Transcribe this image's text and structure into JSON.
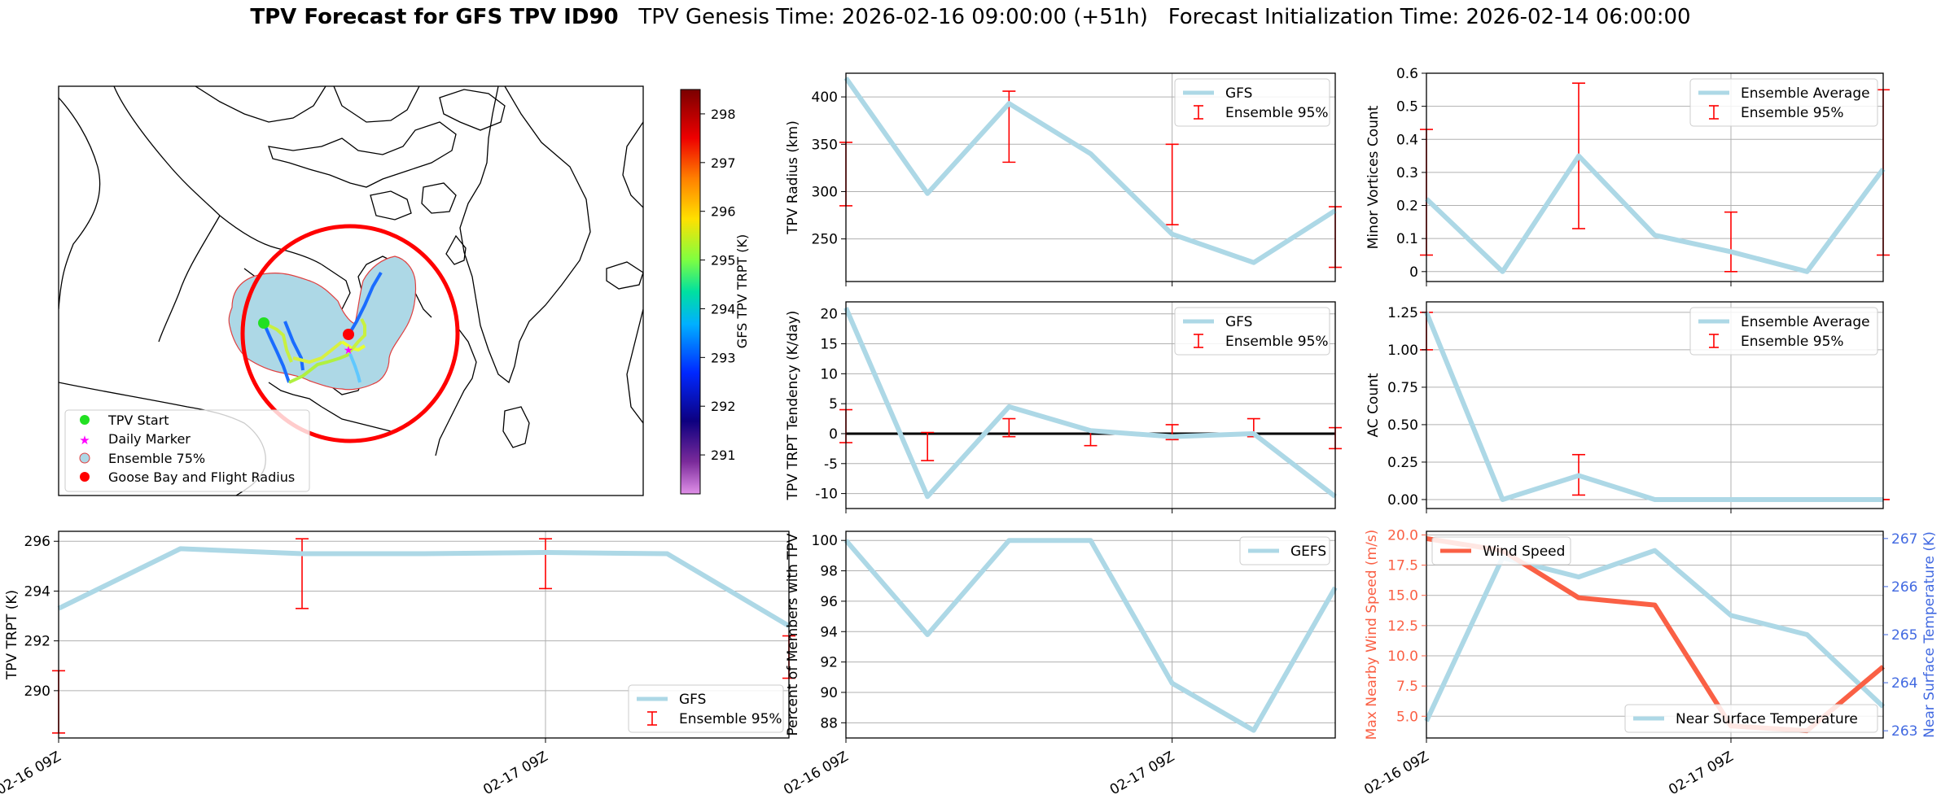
{
  "figure": {
    "title_bold": "TPV Forecast for GFS TPV ID90",
    "title_rest": "   TPV Genesis Time: 2026-02-16 09:00:00 (+51h)   Forecast Initialization Time: 2026-02-14 06:00:00"
  },
  "colors": {
    "line": "#add8e6",
    "errorbar": "#ff0000",
    "wind": "#fa6045",
    "temp_axis": "#4169e1",
    "map_fill": "#add8e6",
    "flight_radius": "#ff0000"
  },
  "map": {
    "colorbar_label": "GFS TPV TRPT (K)",
    "colorbar_ticks": [
      291,
      292,
      293,
      294,
      295,
      296,
      297,
      298
    ],
    "colorbar_range": [
      290.2,
      298.5
    ],
    "legend": [
      "TPV Start",
      "Daily Marker",
      "Ensemble 75%",
      "Goose Bay and Flight Radius"
    ],
    "icons": {
      "start": "green-dot",
      "daily": "magenta-star",
      "ensemble": "lightblue-circle",
      "goose_bay": "red-dot"
    }
  },
  "chart_data": [
    {
      "id": "trpt",
      "type": "line",
      "ylabel": "TPV TRPT (K)",
      "ylim": [
        288.1,
        296.4
      ],
      "yticks": [
        290,
        292,
        294,
        296
      ],
      "xticks": [
        0,
        24
      ],
      "xticklabels": [
        "02-16 09Z",
        "02-17 09Z"
      ],
      "xlim": [
        0,
        36
      ],
      "legend_position": "lower right",
      "series": [
        {
          "name": "GFS",
          "x": [
            0,
            6,
            12,
            18,
            24,
            30,
            36
          ],
          "values": [
            293.3,
            295.7,
            295.5,
            295.5,
            295.55,
            295.5,
            292.6
          ]
        }
      ],
      "errorbars": {
        "name": "Ensemble 95%",
        "x": [
          0,
          12,
          24,
          36
        ],
        "low": [
          288.3,
          293.3,
          294.1,
          290.5
        ],
        "high": [
          290.8,
          296.1,
          296.1,
          292.2
        ]
      }
    },
    {
      "id": "radius",
      "type": "line",
      "ylabel": "TPV Radius (km)",
      "ylim": [
        205,
        425
      ],
      "yticks": [
        250,
        300,
        350,
        400
      ],
      "xticks": [
        0,
        24
      ],
      "xlim": [
        0,
        36
      ],
      "legend_position": "upper right",
      "series": [
        {
          "name": "GFS",
          "x": [
            0,
            6,
            12,
            18,
            24,
            30,
            36
          ],
          "values": [
            420,
            298,
            393,
            340,
            255,
            225,
            280
          ]
        }
      ],
      "errorbars": {
        "name": "Ensemble 95%",
        "x": [
          0,
          12,
          24,
          36
        ],
        "low": [
          285,
          331,
          265,
          220
        ],
        "high": [
          352,
          406,
          350,
          284
        ]
      }
    },
    {
      "id": "tendency",
      "type": "line",
      "ylabel": "TPV TRPT Tendency (K/day)",
      "ylim": [
        -12.5,
        22
      ],
      "yticks": [
        -10,
        -5,
        0,
        5,
        10,
        15,
        20
      ],
      "xticks": [
        0,
        24
      ],
      "xlim": [
        0,
        36
      ],
      "zero_line": true,
      "legend_position": "upper right",
      "series": [
        {
          "name": "GFS",
          "x": [
            0,
            6,
            12,
            18,
            24,
            30,
            36
          ],
          "values": [
            21,
            -10.5,
            4.5,
            0.5,
            -0.5,
            0,
            -10.5
          ]
        }
      ],
      "errorbars": {
        "name": "Ensemble 95%",
        "x": [
          0,
          6,
          12,
          18,
          24,
          30,
          36
        ],
        "low": [
          -1.5,
          -4.5,
          -0.5,
          -2,
          -1,
          -0.5,
          -2.5
        ],
        "high": [
          4,
          0.2,
          2.5,
          0.5,
          1.5,
          2.5,
          1
        ]
      }
    },
    {
      "id": "members",
      "type": "line",
      "ylabel": "Percent of Members with TPV",
      "ylim": [
        87,
        100.6
      ],
      "yticks": [
        88,
        90,
        92,
        94,
        96,
        98,
        100
      ],
      "xticks": [
        0,
        24
      ],
      "xticklabels": [
        "02-16 09Z",
        "02-17 09Z"
      ],
      "xlim": [
        0,
        36
      ],
      "legend_position": "upper right",
      "series": [
        {
          "name": "GEFS",
          "x": [
            0,
            6,
            12,
            18,
            24,
            30,
            36
          ],
          "values": [
            100,
            93.8,
            100,
            100,
            90.6,
            87.5,
            96.9
          ]
        }
      ]
    },
    {
      "id": "minor",
      "type": "line",
      "ylabel": "Minor Vortices Count",
      "ylim": [
        -0.03,
        0.6
      ],
      "yticks": [
        0.0,
        0.1,
        0.2,
        0.3,
        0.4,
        0.5,
        0.6
      ],
      "xticks": [
        0,
        24
      ],
      "xlim": [
        0,
        36
      ],
      "legend_position": "upper right",
      "series": [
        {
          "name": "Ensemble Average",
          "x": [
            0,
            6,
            12,
            18,
            24,
            30,
            36
          ],
          "values": [
            0.22,
            0,
            0.35,
            0.11,
            0.06,
            0,
            0.31
          ]
        }
      ],
      "errorbars": {
        "name": "Ensemble 95%",
        "x": [
          0,
          12,
          24,
          36
        ],
        "low": [
          0.05,
          0.13,
          0,
          0.05
        ],
        "high": [
          0.43,
          0.57,
          0.18,
          0.55
        ]
      }
    },
    {
      "id": "ac",
      "type": "line",
      "ylabel": "AC Count",
      "ylim": [
        -0.06,
        1.32
      ],
      "yticks": [
        0.0,
        0.25,
        0.5,
        0.75,
        1.0,
        1.25
      ],
      "yticklabels": [
        "0.00",
        "0.25",
        "0.50",
        "0.75",
        "1.00",
        "1.25"
      ],
      "xticks": [
        0,
        24
      ],
      "xlim": [
        0,
        36
      ],
      "legend_position": "upper right",
      "series": [
        {
          "name": "Ensemble Average",
          "x": [
            0,
            6,
            12,
            18,
            24,
            30,
            36
          ],
          "values": [
            1.25,
            0,
            0.16,
            0,
            0,
            0,
            0
          ]
        }
      ],
      "errorbars": {
        "name": "Ensemble 95%",
        "x": [
          0,
          12,
          24,
          36
        ],
        "low": [
          1.0,
          0.03,
          0,
          0
        ],
        "high": [
          1.25,
          0.3,
          0,
          0
        ]
      }
    },
    {
      "id": "wind",
      "type": "line",
      "ylabel": "Max Nearby Wind Speed (m/s)",
      "ylim": [
        3.2,
        20.3
      ],
      "yticks": [
        5.0,
        7.5,
        10.0,
        12.5,
        15.0,
        17.5,
        20.0
      ],
      "yticklabels": [
        "5.0",
        "7.5",
        "10.0",
        "12.5",
        "15.0",
        "17.5",
        "20.0"
      ],
      "xticks": [
        0,
        24
      ],
      "xticklabels": [
        "02-16 09Z",
        "02-17 09Z"
      ],
      "xlim": [
        0,
        36
      ],
      "legend_position": "upper left",
      "series": [
        {
          "name": "Wind Speed",
          "x": [
            0,
            6,
            12,
            18,
            24,
            30,
            36
          ],
          "values": [
            19.7,
            18.7,
            14.8,
            14.2,
            4.2,
            3.8,
            9.1
          ]
        }
      ],
      "secondary": {
        "ylabel": "Near Surface Temperature (K)",
        "ylim": [
          262.85,
          267.15
        ],
        "yticks": [
          263,
          264,
          265,
          266,
          267
        ],
        "legend_position": "lower right",
        "series": [
          {
            "name": "Near Surface Temperature",
            "x": [
              0,
              6,
              12,
              18,
              24,
              30,
              36
            ],
            "values": [
              263.2,
              266.6,
              266.2,
              266.75,
              265.4,
              265.0,
              263.5
            ]
          }
        ]
      }
    }
  ]
}
